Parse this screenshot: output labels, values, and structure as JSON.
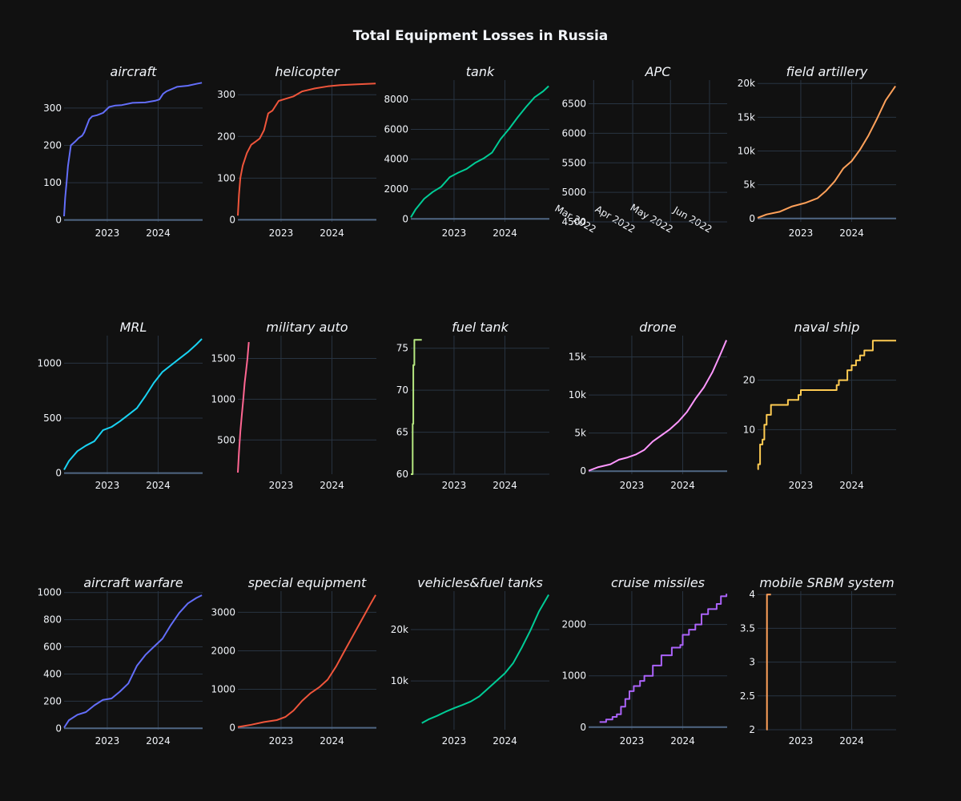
{
  "title": "Total Equipment Losses in Russia",
  "chart_data": [
    {
      "type": "line",
      "title": "aircraft",
      "color": "#636efa",
      "xlim": [
        "2022-02-25",
        "2024-11-15"
      ],
      "ylim": [
        -5,
        375
      ],
      "yticks": [
        0,
        100,
        200,
        300
      ],
      "ytick_labels": [
        "0",
        "100",
        "200",
        "300"
      ],
      "xticks": [
        "2023-01-01",
        "2024-01-01"
      ],
      "xtick_labels": [
        "2023",
        "2024"
      ],
      "step": false,
      "x": [
        "2022-02-25",
        "2022-03-05",
        "2022-03-15",
        "2022-03-25",
        "2022-04-15",
        "2022-05-15",
        "2022-06-10",
        "2022-07-05",
        "2022-07-20",
        "2022-08-25",
        "2022-09-15",
        "2022-10-20",
        "2022-12-01",
        "2023-01-15",
        "2023-03-01",
        "2023-04-15",
        "2023-07-01",
        "2023-10-01",
        "2023-12-15",
        "2024-01-10",
        "2024-02-05",
        "2024-03-01",
        "2024-05-15",
        "2024-08-01",
        "2024-10-01",
        "2024-11-10"
      ],
      "y": [
        10,
        60,
        100,
        145,
        200,
        210,
        220,
        226,
        235,
        270,
        278,
        281,
        287,
        303,
        307,
        308,
        314,
        315,
        320,
        323,
        338,
        345,
        357,
        360,
        365,
        368
      ]
    },
    {
      "type": "line",
      "title": "helicopter",
      "color": "#ef553b",
      "xlim": [
        "2022-02-25",
        "2024-11-15"
      ],
      "ylim": [
        -5,
        335
      ],
      "yticks": [
        0,
        100,
        200,
        300
      ],
      "ytick_labels": [
        "0",
        "100",
        "200",
        "300"
      ],
      "xticks": [
        "2023-01-01",
        "2024-01-01"
      ],
      "xtick_labels": [
        "2023",
        "2024"
      ],
      "step": false,
      "x": [
        "2022-02-25",
        "2022-03-05",
        "2022-03-15",
        "2022-04-01",
        "2022-05-01",
        "2022-06-01",
        "2022-07-01",
        "2022-08-01",
        "2022-09-01",
        "2022-10-01",
        "2022-11-01",
        "2022-12-15",
        "2023-02-01",
        "2023-04-01",
        "2023-06-01",
        "2023-09-01",
        "2023-12-01",
        "2024-03-01",
        "2024-07-01",
        "2024-11-10"
      ],
      "y": [
        10,
        60,
        100,
        130,
        160,
        180,
        187,
        195,
        215,
        255,
        262,
        285,
        290,
        296,
        308,
        315,
        320,
        323,
        325,
        327
      ]
    },
    {
      "type": "line",
      "title": "tank",
      "color": "#00cc96",
      "xlim": [
        "2022-02-25",
        "2024-11-15"
      ],
      "ylim": [
        -200,
        9300
      ],
      "yticks": [
        0,
        2000,
        4000,
        6000,
        8000
      ],
      "ytick_labels": [
        "0",
        "2000",
        "4000",
        "6000",
        "8000"
      ],
      "xticks": [
        "2023-01-01",
        "2024-01-01"
      ],
      "xtick_labels": [
        "2023",
        "2024"
      ],
      "step": false,
      "x": [
        "2022-02-25",
        "2022-04-01",
        "2022-06-01",
        "2022-08-01",
        "2022-10-01",
        "2022-12-01",
        "2023-02-01",
        "2023-04-01",
        "2023-06-01",
        "2023-08-01",
        "2023-10-01",
        "2023-12-01",
        "2024-02-01",
        "2024-04-01",
        "2024-06-01",
        "2024-08-01",
        "2024-10-01",
        "2024-11-10"
      ],
      "y": [
        100,
        650,
        1350,
        1800,
        2150,
        2800,
        3100,
        3350,
        3750,
        4050,
        4450,
        5350,
        6050,
        6800,
        7500,
        8150,
        8550,
        8900
      ]
    },
    {
      "type": "line",
      "title": "APC",
      "color": "#ab63fa",
      "xlim": [
        "2022-02-25",
        "2022-06-15"
      ],
      "ylim": [
        4500,
        6900
      ],
      "yticks": [
        4500,
        5000,
        5500,
        6000,
        6500
      ],
      "ytick_labels": [
        "4500",
        "5000",
        "5500",
        "6000",
        "6500"
      ],
      "xticks": [
        "2022-03-01",
        "2022-04-01",
        "2022-05-01",
        "2022-06-01"
      ],
      "xtick_labels": [
        "Mar 2022",
        "Apr 2022",
        "May 2022",
        "Jun 2022"
      ],
      "step": false,
      "x": [],
      "y": []
    },
    {
      "type": "line",
      "title": "field artillery",
      "color": "#ffa15a",
      "xlim": [
        "2022-02-25",
        "2024-11-15"
      ],
      "ylim": [
        -500,
        20500
      ],
      "yticks": [
        0,
        5000,
        10000,
        15000,
        20000
      ],
      "ytick_labels": [
        "0",
        "5k",
        "10k",
        "15k",
        "20k"
      ],
      "xticks": [
        "2023-01-01",
        "2024-01-01"
      ],
      "xtick_labels": [
        "2023",
        "2024"
      ],
      "step": false,
      "x": [
        "2022-02-25",
        "2022-05-01",
        "2022-08-01",
        "2022-11-01",
        "2023-02-01",
        "2023-05-01",
        "2023-07-01",
        "2023-09-01",
        "2023-11-01",
        "2024-01-01",
        "2024-03-01",
        "2024-05-01",
        "2024-07-01",
        "2024-09-01",
        "2024-11-10"
      ],
      "y": [
        100,
        600,
        1000,
        1800,
        2300,
        3000,
        4100,
        5500,
        7400,
        8500,
        10200,
        12300,
        14800,
        17500,
        19600
      ]
    },
    {
      "type": "line",
      "title": "MRL",
      "color": "#19d3f3",
      "xlim": [
        "2022-02-25",
        "2024-11-15"
      ],
      "ylim": [
        -10,
        1250
      ],
      "yticks": [
        0,
        500,
        1000
      ],
      "ytick_labels": [
        "0",
        "500",
        "1000"
      ],
      "xticks": [
        "2023-01-01",
        "2024-01-01"
      ],
      "xtick_labels": [
        "2023",
        "2024"
      ],
      "step": false,
      "x": [
        "2022-02-25",
        "2022-04-01",
        "2022-06-01",
        "2022-08-01",
        "2022-10-01",
        "2022-12-01",
        "2023-02-01",
        "2023-04-01",
        "2023-06-01",
        "2023-08-01",
        "2023-10-01",
        "2023-12-01",
        "2024-02-01",
        "2024-04-01",
        "2024-06-01",
        "2024-08-01",
        "2024-10-01",
        "2024-11-10"
      ],
      "y": [
        30,
        110,
        200,
        250,
        290,
        390,
        420,
        470,
        530,
        590,
        700,
        820,
        920,
        980,
        1040,
        1100,
        1170,
        1220
      ]
    },
    {
      "type": "line",
      "title": "military auto",
      "color": "#ff6692",
      "xlim": [
        "2022-02-25",
        "2024-11-15"
      ],
      "ylim": [
        80,
        1780
      ],
      "yticks": [
        500,
        1000,
        1500
      ],
      "ytick_labels": [
        "500",
        "1000",
        "1500"
      ],
      "xticks": [
        "2023-01-01",
        "2024-01-01"
      ],
      "xtick_labels": [
        "2023",
        "2024"
      ],
      "step": false,
      "x": [
        "2022-02-25",
        "2022-03-05",
        "2022-03-15",
        "2022-03-25",
        "2022-04-05",
        "2022-04-15",
        "2022-04-25",
        "2022-05-05",
        "2022-05-15"
      ],
      "y": [
        100,
        350,
        600,
        800,
        1000,
        1200,
        1350,
        1500,
        1700
      ]
    },
    {
      "type": "line",
      "title": "fuel tank",
      "color": "#b6e880",
      "xlim": [
        "2022-02-25",
        "2024-11-15"
      ],
      "ylim": [
        60,
        76.5
      ],
      "yticks": [
        60,
        65,
        70,
        75
      ],
      "ytick_labels": [
        "60",
        "65",
        "70",
        "75"
      ],
      "xticks": [
        "2023-01-01",
        "2024-01-01"
      ],
      "xtick_labels": [
        "2023",
        "2024"
      ],
      "step": true,
      "x": [
        "2022-02-25",
        "2022-03-04",
        "2022-03-10",
        "2022-03-15",
        "2022-03-22",
        "2022-04-10",
        "2022-05-15"
      ],
      "y": [
        60,
        60,
        66,
        73,
        76,
        76,
        76
      ]
    },
    {
      "type": "line",
      "title": "drone",
      "color": "#ff97ff",
      "xlim": [
        "2022-02-25",
        "2024-11-15"
      ],
      "ylim": [
        -400,
        17800
      ],
      "yticks": [
        0,
        5000,
        10000,
        15000
      ],
      "ytick_labels": [
        "0",
        "5k",
        "10k",
        "15k"
      ],
      "xticks": [
        "2023-01-01",
        "2024-01-01"
      ],
      "xtick_labels": [
        "2023",
        "2024"
      ],
      "step": false,
      "x": [
        "2022-02-25",
        "2022-05-01",
        "2022-08-01",
        "2022-10-01",
        "2022-12-01",
        "2023-02-01",
        "2023-04-01",
        "2023-06-01",
        "2023-08-01",
        "2023-10-01",
        "2023-12-01",
        "2024-02-01",
        "2024-04-01",
        "2024-06-01",
        "2024-08-01",
        "2024-10-01",
        "2024-11-10"
      ],
      "y": [
        50,
        500,
        900,
        1500,
        1800,
        2200,
        2800,
        3900,
        4700,
        5500,
        6500,
        7800,
        9500,
        11000,
        13000,
        15500,
        17200
      ]
    },
    {
      "type": "line",
      "title": "naval ship",
      "color": "#fecb52",
      "xlim": [
        "2022-02-25",
        "2024-11-15"
      ],
      "ylim": [
        1,
        29
      ],
      "yticks": [
        10,
        20
      ],
      "ytick_labels": [
        "10",
        "20"
      ],
      "xticks": [
        "2023-01-01",
        "2024-01-01"
      ],
      "xtick_labels": [
        "2023",
        "2024"
      ],
      "step": true,
      "x": [
        "2022-02-25",
        "2022-03-01",
        "2022-03-15",
        "2022-04-01",
        "2022-04-14",
        "2022-05-01",
        "2022-06-01",
        "2022-07-15",
        "2022-10-01",
        "2022-12-15",
        "2023-01-01",
        "2023-09-15",
        "2023-10-01",
        "2023-12-01",
        "2024-01-01",
        "2024-02-01",
        "2024-03-01",
        "2024-04-01",
        "2024-06-01",
        "2024-11-15"
      ],
      "y": [
        2,
        3,
        7,
        8,
        11,
        13,
        15,
        15,
        16,
        17,
        18,
        19,
        20,
        22,
        23,
        24,
        25,
        26,
        28,
        28
      ]
    },
    {
      "type": "line",
      "title": "aircraft warfare",
      "color": "#636efa",
      "xlim": [
        "2022-02-25",
        "2024-11-15"
      ],
      "ylim": [
        -10,
        1010
      ],
      "yticks": [
        0,
        200,
        400,
        600,
        800,
        1000
      ],
      "ytick_labels": [
        "0",
        "200",
        "400",
        "600",
        "800",
        "1000"
      ],
      "xticks": [
        "2023-01-01",
        "2024-01-01"
      ],
      "xtick_labels": [
        "2023",
        "2024"
      ],
      "step": false,
      "x": [
        "2022-02-25",
        "2022-04-01",
        "2022-06-01",
        "2022-08-01",
        "2022-10-01",
        "2022-12-01",
        "2023-02-01",
        "2023-04-01",
        "2023-06-01",
        "2023-08-01",
        "2023-10-01",
        "2023-12-01",
        "2024-02-01",
        "2024-04-01",
        "2024-06-01",
        "2024-08-01",
        "2024-10-01",
        "2024-11-10"
      ],
      "y": [
        5,
        60,
        100,
        120,
        170,
        210,
        220,
        270,
        330,
        460,
        540,
        600,
        660,
        760,
        850,
        920,
        960,
        980
      ]
    },
    {
      "type": "line",
      "title": "special equipment",
      "color": "#ef553b",
      "xlim": [
        "2022-02-25",
        "2024-11-15"
      ],
      "ylim": [
        -50,
        3550
      ],
      "yticks": [
        0,
        1000,
        2000,
        3000
      ],
      "ytick_labels": [
        "0",
        "1000",
        "2000",
        "3000"
      ],
      "xticks": [
        "2023-01-01",
        "2024-01-01"
      ],
      "xtick_labels": [
        "2023",
        "2024"
      ],
      "step": false,
      "x": [
        "2022-02-25",
        "2022-06-01",
        "2022-09-01",
        "2022-12-01",
        "2023-02-01",
        "2023-04-01",
        "2023-06-01",
        "2023-08-01",
        "2023-10-01",
        "2023-12-01",
        "2024-02-01",
        "2024-04-01",
        "2024-06-01",
        "2024-08-01",
        "2024-10-01",
        "2024-11-10"
      ],
      "y": [
        20,
        80,
        150,
        200,
        280,
        450,
        700,
        900,
        1050,
        1250,
        1600,
        2000,
        2400,
        2800,
        3200,
        3450
      ]
    },
    {
      "type": "line",
      "title": "vehicles&fuel tanks",
      "color": "#00cc96",
      "xlim": [
        "2022-02-25",
        "2024-11-15"
      ],
      "ylim": [
        500,
        27500
      ],
      "yticks": [
        10000,
        20000
      ],
      "ytick_labels": [
        "10k",
        "20k"
      ],
      "xticks": [
        "2023-01-01",
        "2024-01-01"
      ],
      "xtick_labels": [
        "2023",
        "2024"
      ],
      "step": false,
      "x": [
        "2022-05-15",
        "2022-07-01",
        "2022-09-01",
        "2022-11-01",
        "2023-01-01",
        "2023-03-01",
        "2023-05-01",
        "2023-07-01",
        "2023-09-01",
        "2023-11-01",
        "2024-01-01",
        "2024-03-01",
        "2024-05-01",
        "2024-07-01",
        "2024-09-01",
        "2024-11-10"
      ],
      "y": [
        1800,
        2500,
        3200,
        4000,
        4700,
        5300,
        6000,
        7000,
        8500,
        10000,
        11500,
        13500,
        16500,
        19800,
        23500,
        26800
      ]
    },
    {
      "type": "line",
      "title": "cruise missiles",
      "color": "#ab63fa",
      "xlim": [
        "2022-02-25",
        "2024-11-15"
      ],
      "ylim": [
        -50,
        2650
      ],
      "yticks": [
        0,
        1000,
        2000
      ],
      "ytick_labels": [
        "0",
        "1000",
        "2000"
      ],
      "xticks": [
        "2023-01-01",
        "2024-01-01"
      ],
      "xtick_labels": [
        "2023",
        "2024"
      ],
      "step": true,
      "x": [
        "2022-05-15",
        "2022-07-01",
        "2022-08-15",
        "2022-09-15",
        "2022-10-15",
        "2022-11-15",
        "2022-12-15",
        "2023-01-15",
        "2023-03-01",
        "2023-04-01",
        "2023-06-01",
        "2023-08-01",
        "2023-10-15",
        "2023-12-15",
        "2024-01-01",
        "2024-02-15",
        "2024-04-01",
        "2024-05-15",
        "2024-07-01",
        "2024-09-01",
        "2024-10-01",
        "2024-11-10"
      ],
      "y": [
        100,
        150,
        200,
        250,
        400,
        550,
        700,
        800,
        900,
        1000,
        1200,
        1400,
        1550,
        1600,
        1800,
        1900,
        2000,
        2200,
        2300,
        2400,
        2550,
        2600
      ]
    },
    {
      "type": "line",
      "title": "mobile SRBM system",
      "color": "#ffa15a",
      "xlim": [
        "2022-02-25",
        "2024-11-15"
      ],
      "ylim": [
        2,
        4.05
      ],
      "yticks": [
        2,
        2.5,
        3,
        3.5,
        4
      ],
      "ytick_labels": [
        "2",
        "2.5",
        "3",
        "3.5",
        "4"
      ],
      "xticks": [
        "2023-01-01",
        "2024-01-01"
      ],
      "xtick_labels": [
        "2023",
        "2024"
      ],
      "step": true,
      "x": [
        "2022-05-01",
        "2022-05-03",
        "2022-06-01"
      ],
      "y": [
        2,
        4,
        4
      ]
    }
  ]
}
